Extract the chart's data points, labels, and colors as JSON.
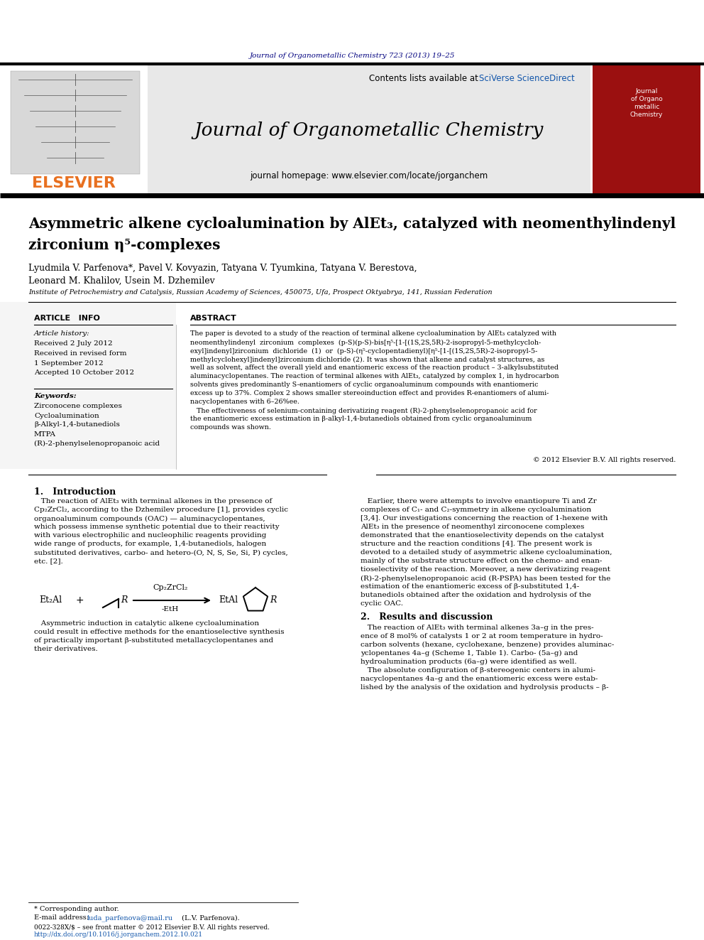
{
  "journal_ref": "Journal of Organometallic Chemistry 723 (2013) 19–25",
  "journal_name": "Journal of Organometallic Chemistry",
  "journal_homepage": "journal homepage: www.elsevier.com/locate/jorganchem",
  "contents_line": "Contents lists available at ",
  "sciverse": "SciVerse ScienceDirect",
  "elsevier_text": "ELSEVIER",
  "article_title_line1": "Asymmetric alkene cycloalumination by AlEt₃, catalyzed with neomenthylindenyl",
  "article_title_line2": "zirconium η⁵-complexes",
  "author_line1": "Lyudmila V. Parfenova*, Pavel V. Kovyazin, Tatyana V. Tyumkina, Tatyana V. Berestova,",
  "author_line2": "Leonard M. Khalilov, Usein M. Dzhemilev",
  "affiliation": "Institute of Petrochemistry and Catalysis, Russian Academy of Sciences, 450075, Ufa, Prospect Oktyabrya, 141, Russian Federation",
  "article_info_header": "ARTICLE   INFO",
  "abstract_header": "ABSTRACT",
  "article_history_label": "Article history:",
  "received1": "Received 2 July 2012",
  "received_revised": "Received in revised form",
  "received_revised2": "1 September 2012",
  "accepted": "Accepted 10 October 2012",
  "keywords_label": "Keywords:",
  "kw1": "Zirconocene complexes",
  "kw2": "Cycloalumination",
  "kw3": "β-Alkyl-1,4-butanediols",
  "kw4": "MTPA",
  "kw5": "(R)-2-phenylselenopropanoic acid",
  "copyright": "© 2012 Elsevier B.V. All rights reserved.",
  "intro_num": "1.",
  "intro_title": "Introduction",
  "results_num": "2.",
  "results_title": "Results and discussion",
  "footer1": "* Corresponding author.",
  "footer2a": "E-mail address: ",
  "footer2b": "luda_parfenova@mail.ru",
  "footer2c": " (L.V. Parfenova).",
  "footer3": "0022-328X/$ – see front matter © 2012 Elsevier B.V. All rights reserved.",
  "footer4": "http://dx.doi.org/10.1016/j.jorganchem.2012.10.021",
  "bg": "#ffffff",
  "navy": "#00007f",
  "orange": "#e87020",
  "blue_link": "#1155aa",
  "dark": "#111111",
  "gray_header": "#e8e8e8"
}
